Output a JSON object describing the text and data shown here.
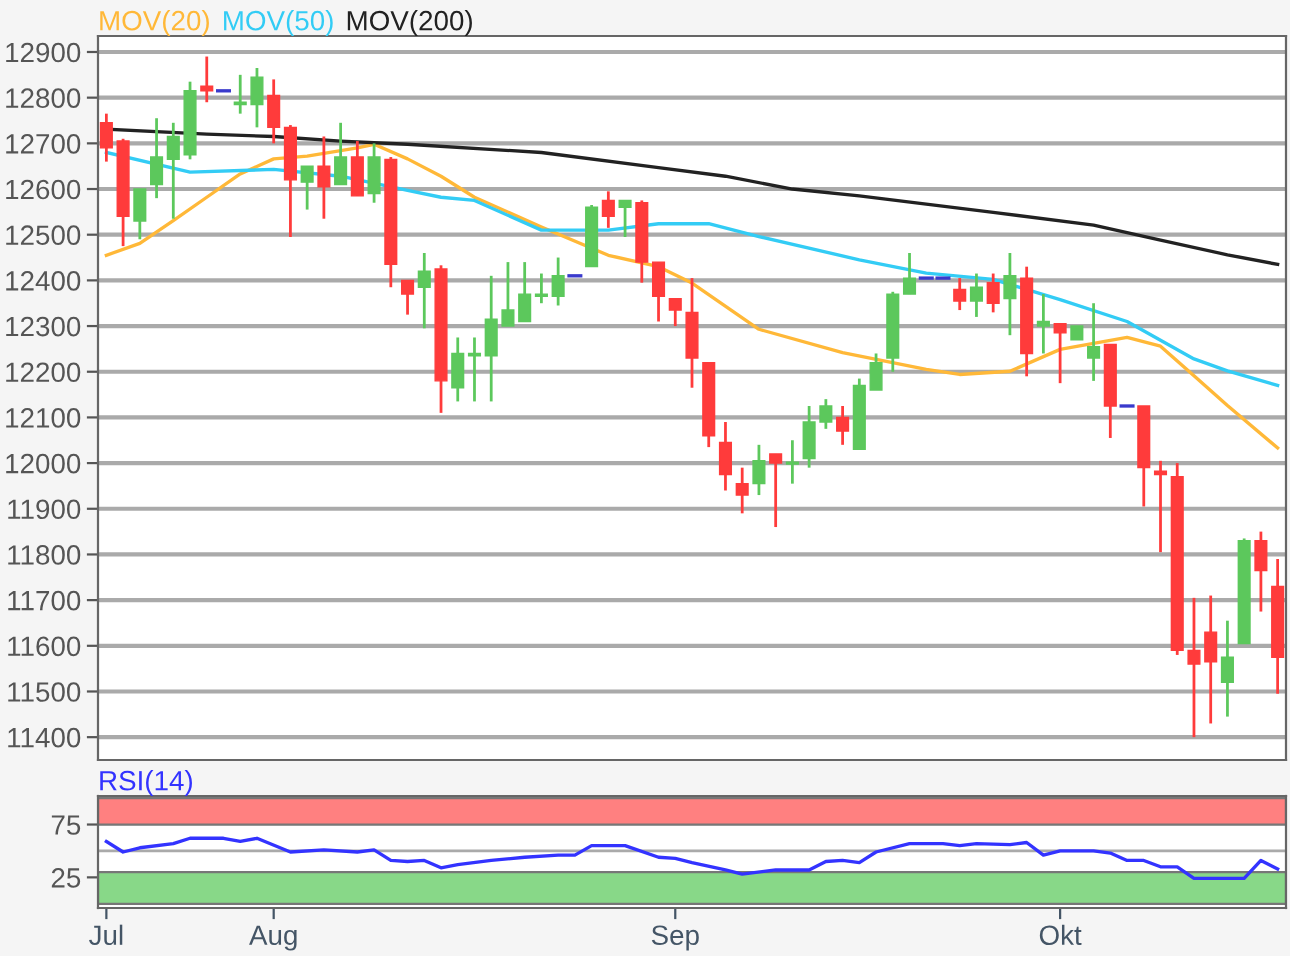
{
  "chart_data": [
    {
      "type": "candlestick",
      "tick_labels": "y",
      "grid": "y",
      "legend": "top left",
      "ohlc": [
        [
          12745,
          12765,
          12660,
          12690
        ],
        [
          12705,
          12710,
          12475,
          12540
        ],
        [
          12530,
          12600,
          12490,
          12600
        ],
        [
          12610,
          12755,
          12580,
          12670
        ],
        [
          12665,
          12745,
          12535,
          12715
        ],
        [
          12675,
          12835,
          12665,
          12815
        ],
        [
          12825,
          12890,
          12790,
          12815
        ],
        [
          12815,
          12815,
          12815,
          12815
        ],
        [
          12785,
          12850,
          12765,
          12790
        ],
        [
          12785,
          12865,
          12735,
          12845
        ],
        [
          12805,
          12840,
          12700,
          12735
        ],
        [
          12735,
          12740,
          12495,
          12620
        ],
        [
          12615,
          12650,
          12555,
          12650
        ],
        [
          12650,
          12715,
          12535,
          12605
        ],
        [
          12610,
          12745,
          12610,
          12670
        ],
        [
          12670,
          12705,
          12585,
          12585
        ],
        [
          12590,
          12700,
          12570,
          12670
        ],
        [
          12665,
          12670,
          12385,
          12435
        ],
        [
          12400,
          12400,
          12325,
          12370
        ],
        [
          12385,
          12460,
          12295,
          12420
        ],
        [
          12425,
          12433,
          12110,
          12180
        ],
        [
          12165,
          12275,
          12135,
          12240
        ],
        [
          12235,
          12275,
          12135,
          12240
        ],
        [
          12235,
          12410,
          12135,
          12315
        ],
        [
          12300,
          12440,
          12300,
          12335
        ],
        [
          12310,
          12440,
          12310,
          12370
        ],
        [
          12365,
          12415,
          12350,
          12370
        ],
        [
          12365,
          12450,
          12345,
          12410
        ],
        [
          12410,
          12410,
          12410,
          12410
        ],
        [
          12430,
          12565,
          12430,
          12560
        ],
        [
          12575,
          12595,
          12515,
          12540
        ],
        [
          12560,
          12575,
          12495,
          12575
        ],
        [
          12570,
          12575,
          12395,
          12440
        ],
        [
          12440,
          12440,
          12310,
          12365
        ],
        [
          12360,
          12360,
          12300,
          12335
        ],
        [
          12330,
          12405,
          12165,
          12230
        ],
        [
          12220,
          12220,
          12035,
          12060
        ],
        [
          12045,
          12090,
          11940,
          11975
        ],
        [
          11955,
          11990,
          11890,
          11930
        ],
        [
          11955,
          12040,
          11930,
          12005
        ],
        [
          12020,
          12020,
          11860,
          12000
        ],
        [
          11998,
          12050,
          11955,
          12002
        ],
        [
          12010,
          12125,
          11990,
          12090
        ],
        [
          12090,
          12140,
          12075,
          12125
        ],
        [
          12100,
          12125,
          12040,
          12070
        ],
        [
          12030,
          12185,
          12030,
          12170
        ],
        [
          12160,
          12240,
          12160,
          12220
        ],
        [
          12230,
          12375,
          12200,
          12370
        ],
        [
          12370,
          12460,
          12370,
          12405
        ],
        [
          12405,
          12405,
          12405,
          12405
        ],
        [
          12405,
          12405,
          12405,
          12405
        ],
        [
          12380,
          12405,
          12335,
          12355
        ],
        [
          12355,
          12415,
          12320,
          12385
        ],
        [
          12395,
          12415,
          12330,
          12350
        ],
        [
          12360,
          12460,
          12280,
          12410
        ],
        [
          12405,
          12430,
          12190,
          12240
        ],
        [
          12300,
          12370,
          12240,
          12310
        ],
        [
          12305,
          12305,
          12175,
          12285
        ],
        [
          12270,
          12300,
          12270,
          12300
        ],
        [
          12230,
          12350,
          12180,
          12255
        ],
        [
          12260,
          12260,
          12055,
          12125
        ],
        [
          12125,
          12125,
          12125,
          12125
        ],
        [
          12125,
          12125,
          11905,
          11990
        ],
        [
          11982,
          12005,
          11805,
          11975
        ],
        [
          11970,
          12000,
          11580,
          11590
        ],
        [
          11590,
          11705,
          11400,
          11560
        ],
        [
          11630,
          11710,
          11430,
          11565
        ],
        [
          11520,
          11655,
          11445,
          11575
        ],
        [
          11605,
          11835,
          11605,
          11830
        ],
        [
          11830,
          11850,
          11675,
          11765
        ],
        [
          11730,
          11790,
          11495,
          11575
        ]
      ],
      "colors": [
        "#ff3b3b",
        "#ff3b3b",
        "#5cc85c",
        "#5cc85c",
        "#5cc85c",
        "#5cc85c",
        "#ff3b3b",
        "#3a3acc",
        "#5cc85c",
        "#5cc85c",
        "#ff3b3b",
        "#ff3b3b",
        "#5cc85c",
        "#ff3b3b",
        "#5cc85c",
        "#ff3b3b",
        "#5cc85c",
        "#ff3b3b",
        "#ff3b3b",
        "#5cc85c",
        "#ff3b3b",
        "#5cc85c",
        "#5cc85c",
        "#5cc85c",
        "#5cc85c",
        "#5cc85c",
        "#5cc85c",
        "#5cc85c",
        "#3a3acc",
        "#5cc85c",
        "#ff3b3b",
        "#5cc85c",
        "#ff3b3b",
        "#ff3b3b",
        "#ff3b3b",
        "#ff3b3b",
        "#ff3b3b",
        "#ff3b3b",
        "#ff3b3b",
        "#5cc85c",
        "#ff3b3b",
        "#5cc85c",
        "#5cc85c",
        "#5cc85c",
        "#ff3b3b",
        "#5cc85c",
        "#5cc85c",
        "#5cc85c",
        "#5cc85c",
        "#3a3acc",
        "#3a3acc",
        "#ff3b3b",
        "#5cc85c",
        "#ff3b3b",
        "#5cc85c",
        "#ff3b3b",
        "#5cc85c",
        "#ff3b3b",
        "#5cc85c",
        "#5cc85c",
        "#ff3b3b",
        "#3a3acc",
        "#ff3b3b",
        "#ff3b3b",
        "#ff3b3b",
        "#ff3b3b",
        "#ff3b3b",
        "#5cc85c",
        "#5cc85c",
        "#ff3b3b",
        "#ff3b3b"
      ],
      "series": [
        {
          "name": "MOV(20)",
          "type": "line",
          "color": "#ffb838",
          "values": [
            12455,
            null,
            12481,
            null,
            12531,
            null,
            12582,
            null,
            12633,
            null,
            12666,
            null,
            12672,
            null,
            null,
            12690,
            12698,
            null,
            12666,
            null,
            12628,
            null,
            12582,
            null,
            null,
            null,
            12517,
            null,
            null,
            null,
            12455,
            null,
            null,
            12430,
            null,
            12394,
            null,
            null,
            null,
            12293,
            null,
            null,
            null,
            null,
            12242,
            null,
            null,
            null,
            null,
            12205,
            null,
            12194,
            null,
            null,
            12201,
            null,
            null,
            12249,
            null,
            null,
            null,
            12275,
            null,
            12256,
            null,
            12191,
            null,
            12126,
            null,
            null,
            12033
          ]
        },
        {
          "name": "MOV(50)",
          "type": "line",
          "color": "#33ccf5",
          "values": [
            12680,
            null,
            null,
            null,
            null,
            12637,
            null,
            null,
            null,
            null,
            12643,
            null,
            null,
            null,
            12628,
            null,
            null,
            null,
            12597,
            null,
            12582,
            null,
            12575,
            null,
            null,
            null,
            12510,
            null,
            null,
            null,
            12510,
            null,
            null,
            12524,
            null,
            null,
            12524,
            null,
            null,
            12496,
            null,
            null,
            null,
            null,
            null,
            12445,
            null,
            null,
            null,
            12416,
            null,
            null,
            null,
            12402,
            null,
            null,
            null,
            12358,
            null,
            null,
            null,
            12310,
            null,
            null,
            null,
            12228,
            null,
            12202,
            null,
            null,
            12170
          ]
        },
        {
          "name": "MOV(200)",
          "type": "line",
          "color": "#222222",
          "values": [
            12731,
            null,
            null,
            null,
            null,
            null,
            12720,
            null,
            null,
            null,
            12715,
            null,
            null,
            null,
            12705,
            null,
            null,
            null,
            12698,
            null,
            null,
            null,
            null,
            null,
            null,
            null,
            12680,
            null,
            null,
            null,
            null,
            null,
            null,
            12647,
            null,
            null,
            null,
            12628,
            null,
            null,
            null,
            12600,
            null,
            null,
            null,
            12585,
            null,
            null,
            null,
            null,
            null,
            null,
            null,
            12549,
            null,
            null,
            null,
            null,
            null,
            12521,
            null,
            null,
            null,
            12488,
            null,
            null,
            null,
            12456,
            null,
            null,
            12435
          ]
        }
      ],
      "ylim": [
        11350,
        12935
      ],
      "yticks": [
        11400,
        11500,
        11600,
        11700,
        11800,
        11900,
        12000,
        12100,
        12200,
        12300,
        12400,
        12500,
        12600,
        12700,
        12800,
        12900
      ]
    },
    {
      "type": "line",
      "legend": "top left",
      "categories": [
        "Jul",
        null,
        null,
        null,
        null,
        null,
        null,
        null,
        null,
        null,
        "Aug",
        null,
        null,
        null,
        null,
        null,
        null,
        null,
        null,
        null,
        null,
        null,
        null,
        null,
        null,
        null,
        null,
        null,
        null,
        null,
        null,
        null,
        null,
        null,
        "Sep",
        null,
        null,
        null,
        null,
        null,
        null,
        null,
        null,
        null,
        null,
        null,
        null,
        null,
        null,
        null,
        null,
        null,
        null,
        null,
        null,
        null,
        null,
        "Okt",
        null,
        null,
        null,
        null,
        null,
        null,
        null,
        null,
        null,
        null,
        null,
        null,
        null
      ],
      "series": [
        {
          "name": "RSI(14)",
          "color": "#3333ff",
          "values": [
            59,
            49,
            53,
            null,
            57,
            62,
            null,
            62,
            59,
            62,
            null,
            49,
            null,
            51,
            null,
            49,
            51,
            41,
            40,
            41,
            34,
            37,
            null,
            41,
            null,
            44,
            null,
            46,
            46,
            55,
            null,
            55,
            null,
            44,
            43,
            39,
            null,
            32,
            28,
            null,
            32,
            null,
            32,
            40,
            41,
            39,
            49,
            null,
            57,
            null,
            57,
            55,
            57,
            null,
            56,
            58,
            46,
            50,
            null,
            50,
            48,
            41,
            41,
            35,
            35,
            24,
            null,
            null,
            24,
            41,
            33
          ]
        }
      ],
      "bands": [
        {
          "axis": "y",
          "from": 75,
          "to": 100,
          "color": "#ff8080"
        },
        {
          "axis": "y",
          "from": 0,
          "to": 30,
          "color": "#88d888"
        }
      ],
      "ref_lines": [
        {
          "axis": "y",
          "value": 50,
          "color": "#aaaaaa"
        }
      ],
      "ylim": [
        -4,
        102
      ],
      "yticks": [
        25,
        75
      ]
    }
  ]
}
